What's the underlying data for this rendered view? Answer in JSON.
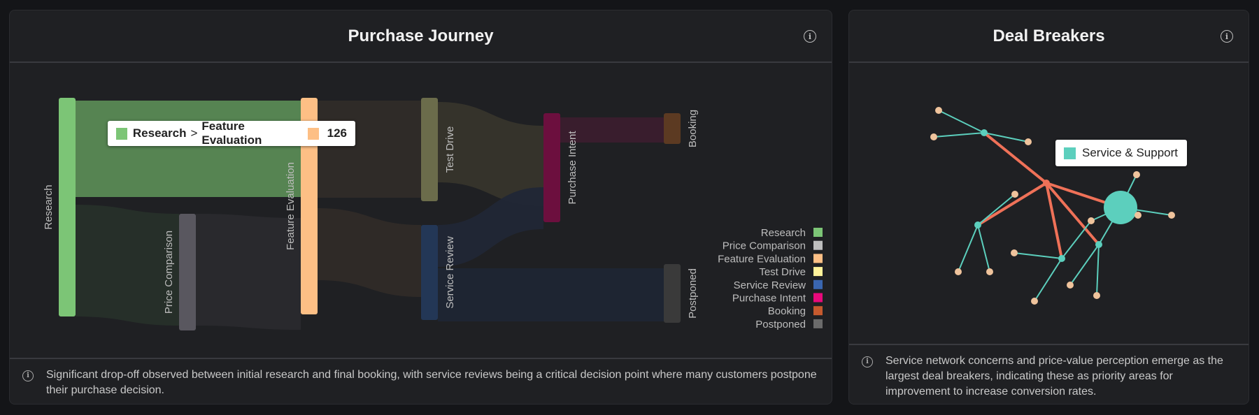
{
  "panels": {
    "left": {
      "title": "Purchase Journey",
      "footer": "Significant drop-off observed between initial research and final booking, with service reviews being a critical decision point where many customers postpone their purchase decision."
    },
    "right": {
      "title": "Deal Breakers",
      "footer": "Service network concerns and price-value perception emerge as the largest deal breakers, indicating these as priority areas for improvement to increase conversion rates."
    }
  },
  "tooltip_left": {
    "source": "Research",
    "separator": ">",
    "target": "Feature Evaluation",
    "value": "126",
    "source_color": "#7cc576",
    "target_color": "#fdbf85"
  },
  "tooltip_right": {
    "label": "Service & Support",
    "color": "#5ccfbd"
  },
  "chart_data": [
    {
      "type": "sankey",
      "title": "Purchase Journey",
      "nodes": [
        {
          "name": "Research",
          "color": "#7cc576",
          "legend_color": "#7cc576"
        },
        {
          "name": "Price Comparison",
          "color": "#59575f",
          "legend_color": "#bebebe"
        },
        {
          "name": "Feature Evaluation",
          "color": "#fdbf85",
          "legend_color": "#fdbf85"
        },
        {
          "name": "Test Drive",
          "color": "#6b6c4b",
          "legend_color": "#fff29a"
        },
        {
          "name": "Service Review",
          "color": "#233756",
          "legend_color": "#3a66b0"
        },
        {
          "name": "Purchase Intent",
          "color": "#6c0f3e",
          "legend_color": "#e8097b"
        },
        {
          "name": "Booking",
          "color": "#5c3a22",
          "legend_color": "#c65a2e"
        },
        {
          "name": "Postponed",
          "color": "#3a3a3a",
          "legend_color": "#6b6b6b"
        }
      ],
      "links": [
        {
          "source": "Research",
          "target": "Feature Evaluation",
          "value": 126
        },
        {
          "source": "Research",
          "target": "Price Comparison",
          "value": 150
        },
        {
          "source": "Price Comparison",
          "target": "Feature Evaluation",
          "value": 150
        },
        {
          "source": "Feature Evaluation",
          "target": "Test Drive",
          "value": 130
        },
        {
          "source": "Feature Evaluation",
          "target": "Service Review",
          "value": 92
        },
        {
          "source": "Test Drive",
          "target": "Purchase Intent",
          "value": 104
        },
        {
          "source": "Service Review",
          "target": "Purchase Intent",
          "value": 58
        },
        {
          "source": "Service Review",
          "target": "Postponed",
          "value": 70
        },
        {
          "source": "Purchase Intent",
          "target": "Booking",
          "value": 60
        }
      ],
      "legend": [
        "Research",
        "Price Comparison",
        "Feature Evaluation",
        "Test Drive",
        "Service Review",
        "Purchase Intent",
        "Booking",
        "Postponed"
      ],
      "legend_position": "bottom-right"
    },
    {
      "type": "network",
      "title": "Deal Breakers",
      "hub_color": "#5ccfbd",
      "leaf_color": "#efc39c",
      "strong_edge_color": "#ef7158",
      "weak_edge_color": "#5ccfbd",
      "highlighted_node": "Service & Support"
    }
  ]
}
